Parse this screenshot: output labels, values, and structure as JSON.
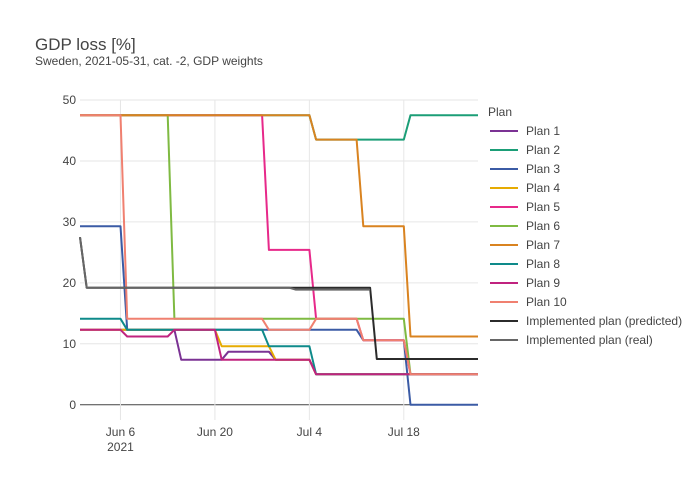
{
  "chart_data": {
    "type": "line",
    "title": "GDP loss [%]",
    "subtitle": "Sweden, 2021-05-31, cat. -2, GDP weights",
    "xlabel": "",
    "ylabel": "",
    "x_range": [
      "2021-05-31",
      "2021-07-29"
    ],
    "ylim": [
      -2.5,
      50
    ],
    "y_ticks": [
      0,
      10,
      20,
      30,
      40,
      50
    ],
    "x_ticks": [
      {
        "date": "2021-06-06",
        "label": "Jun 6",
        "sublabel": "2021"
      },
      {
        "date": "2021-06-20",
        "label": "Jun 20",
        "sublabel": ""
      },
      {
        "date": "2021-07-04",
        "label": "Jul 4",
        "sublabel": ""
      },
      {
        "date": "2021-07-18",
        "label": "Jul 18",
        "sublabel": ""
      }
    ],
    "grid": true,
    "legend_title": "Plan",
    "legend_position": "right",
    "series": [
      {
        "name": "Plan 1",
        "color": "#7B3294",
        "x": [
          "2021-05-31",
          "2021-06-06",
          "2021-06-07",
          "2021-06-14",
          "2021-06-15",
          "2021-06-21",
          "2021-06-22",
          "2021-06-28",
          "2021-06-29",
          "2021-07-04",
          "2021-07-05",
          "2021-07-29"
        ],
        "y": [
          12.3,
          12.3,
          12.3,
          12.3,
          7.4,
          7.4,
          8.7,
          8.7,
          7.4,
          7.4,
          5,
          5
        ]
      },
      {
        "name": "Plan 2",
        "color": "#1B9E77",
        "x": [
          "2021-05-31",
          "2021-07-04",
          "2021-07-05",
          "2021-07-18",
          "2021-07-19",
          "2021-07-29"
        ],
        "y": [
          47.5,
          47.5,
          43.5,
          43.5,
          47.5,
          47.5
        ]
      },
      {
        "name": "Plan 3",
        "color": "#3B5BA5",
        "x": [
          "2021-05-31",
          "2021-06-06",
          "2021-06-07",
          "2021-07-11",
          "2021-07-12",
          "2021-07-18",
          "2021-07-19",
          "2021-07-29"
        ],
        "y": [
          29.3,
          29.3,
          12.3,
          12.3,
          10.6,
          10.6,
          0,
          0
        ]
      },
      {
        "name": "Plan 4",
        "color": "#E6AB02",
        "x": [
          "2021-05-31",
          "2021-06-06",
          "2021-06-07",
          "2021-06-20",
          "2021-06-21",
          "2021-06-28",
          "2021-06-29",
          "2021-07-04",
          "2021-07-05",
          "2021-07-29"
        ],
        "y": [
          12.3,
          12.3,
          12.3,
          12.3,
          9.6,
          9.6,
          7.4,
          7.4,
          5,
          5
        ]
      },
      {
        "name": "Plan 5",
        "color": "#E7298A",
        "x": [
          "2021-05-31",
          "2021-06-27",
          "2021-06-28",
          "2021-07-04",
          "2021-07-05",
          "2021-07-11",
          "2021-07-12",
          "2021-07-18",
          "2021-07-19",
          "2021-07-29"
        ],
        "y": [
          47.5,
          47.5,
          25.4,
          25.4,
          14.1,
          14.1,
          10.6,
          10.6,
          5,
          5
        ]
      },
      {
        "name": "Plan 6",
        "color": "#7FBA42",
        "x": [
          "2021-05-31",
          "2021-06-13",
          "2021-06-14",
          "2021-07-18",
          "2021-07-19",
          "2021-07-29"
        ],
        "y": [
          47.5,
          47.5,
          14.1,
          14.1,
          5,
          5
        ]
      },
      {
        "name": "Plan 7",
        "color": "#D98320",
        "x": [
          "2021-05-31",
          "2021-07-04",
          "2021-07-05",
          "2021-07-11",
          "2021-07-12",
          "2021-07-18",
          "2021-07-19",
          "2021-07-29"
        ],
        "y": [
          47.5,
          47.5,
          43.5,
          43.5,
          29.3,
          29.3,
          11.2,
          11.2
        ]
      },
      {
        "name": "Plan 8",
        "color": "#0E8A8A",
        "x": [
          "2021-05-31",
          "2021-06-06",
          "2021-06-07",
          "2021-06-27",
          "2021-06-28",
          "2021-07-04",
          "2021-07-05",
          "2021-07-29"
        ],
        "y": [
          14.1,
          14.1,
          12.3,
          12.3,
          9.6,
          9.6,
          5,
          5
        ]
      },
      {
        "name": "Plan 9",
        "color": "#C0237F",
        "x": [
          "2021-05-31",
          "2021-06-06",
          "2021-06-07",
          "2021-06-13",
          "2021-06-14",
          "2021-06-20",
          "2021-06-21",
          "2021-07-04",
          "2021-07-05",
          "2021-07-29"
        ],
        "y": [
          12.3,
          12.3,
          11.2,
          11.2,
          12.3,
          12.3,
          7.4,
          7.4,
          5,
          5
        ]
      },
      {
        "name": "Plan 10",
        "color": "#F08070",
        "x": [
          "2021-05-31",
          "2021-06-06",
          "2021-06-07",
          "2021-06-27",
          "2021-06-28",
          "2021-07-04",
          "2021-07-05",
          "2021-07-11",
          "2021-07-12",
          "2021-07-18",
          "2021-07-19",
          "2021-07-29"
        ],
        "y": [
          47.5,
          47.5,
          14.1,
          14.1,
          12.3,
          12.3,
          14.1,
          14.1,
          10.6,
          10.6,
          5,
          5
        ]
      },
      {
        "name": "Implemented plan (predicted)",
        "color": "#2B2B2B",
        "x": [
          "2021-05-31",
          "2021-06-01",
          "2021-07-13",
          "2021-07-14",
          "2021-07-29"
        ],
        "y": [
          27.5,
          19.2,
          19.2,
          7.5,
          7.5
        ]
      },
      {
        "name": "Implemented plan (real)",
        "color": "#666666",
        "x": [
          "2021-05-31",
          "2021-06-01",
          "2021-07-01",
          "2021-07-02",
          "2021-07-13"
        ],
        "y": [
          27.5,
          19.2,
          19.2,
          18.9,
          18.9
        ]
      }
    ]
  }
}
